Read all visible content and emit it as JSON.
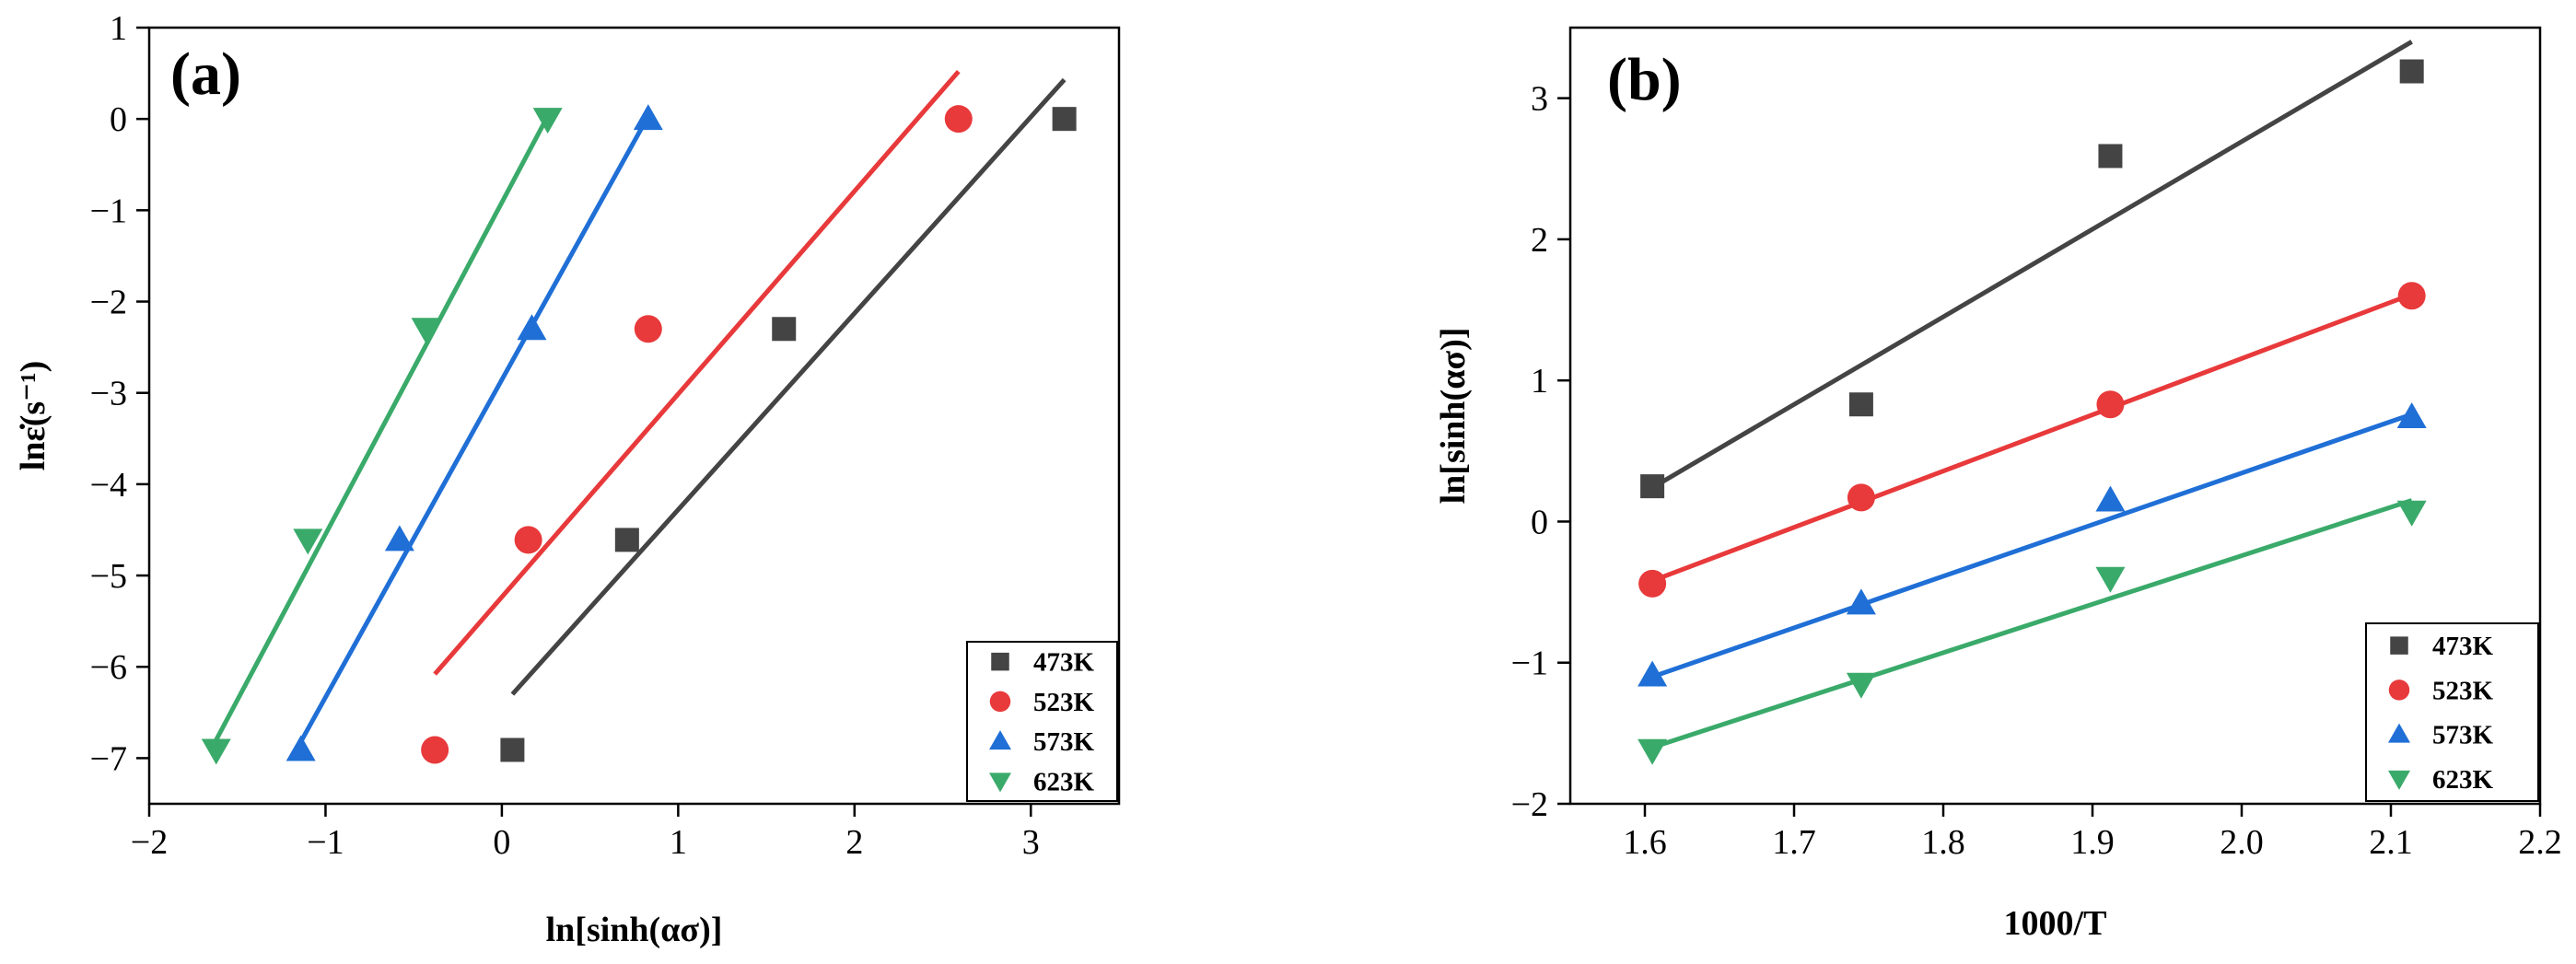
{
  "chart_data": [
    {
      "type": "scatter",
      "panel_label": "(a)",
      "xlabel": "ln[sinh(ασ)]",
      "ylabel": "lnε̇(s⁻¹)",
      "xlim": [
        -2,
        3.5
      ],
      "ylim": [
        -7.5,
        1
      ],
      "xticks": [
        -2,
        -1,
        0,
        1,
        2,
        3
      ],
      "xtick_labels": [
        "−2",
        "−1",
        "0",
        "1",
        "2",
        "3"
      ],
      "yticks": [
        1,
        0,
        -1,
        -2,
        -3,
        -4,
        -5,
        -6,
        -7
      ],
      "ytick_labels": [
        "1",
        "0",
        "−1",
        "−2",
        "−3",
        "−4",
        "−5",
        "−6",
        "−7"
      ],
      "legend_position": "bottom-right",
      "series": [
        {
          "name": "473K",
          "color": "#444444",
          "marker": "square",
          "x": [
            0.06,
            0.71,
            1.6,
            3.19
          ],
          "y": [
            -6.91,
            -4.61,
            -2.3,
            0.0
          ],
          "fit_x": [
            0.06,
            3.19
          ],
          "fit_y": [
            -6.3,
            0.43
          ]
        },
        {
          "name": "523K",
          "color": "#e8393b",
          "marker": "circle",
          "x": [
            -0.38,
            0.15,
            0.83,
            2.59
          ],
          "y": [
            -6.91,
            -4.61,
            -2.3,
            0.0
          ],
          "fit_x": [
            -0.38,
            2.59
          ],
          "fit_y": [
            -6.08,
            0.52
          ]
        },
        {
          "name": "573K",
          "color": "#1f6fd6",
          "marker": "triangle-up",
          "x": [
            -1.14,
            -0.58,
            0.17,
            0.83
          ],
          "y": [
            -6.91,
            -4.61,
            -2.3,
            0.0
          ],
          "fit_x": [
            -1.14,
            0.83
          ],
          "fit_y": [
            -6.82,
            0.03
          ]
        },
        {
          "name": "623K",
          "color": "#3aaa6a",
          "marker": "triangle-down",
          "x": [
            -1.62,
            -1.1,
            -0.43,
            0.26
          ],
          "y": [
            -6.91,
            -4.61,
            -2.3,
            0.0
          ],
          "fit_x": [
            -1.62,
            0.26
          ],
          "fit_y": [
            -6.8,
            0.03
          ]
        }
      ]
    },
    {
      "type": "scatter",
      "panel_label": "(b)",
      "xlabel": "1000/T",
      "ylabel": "ln[sinh(ασ)]",
      "xlim": [
        1.55,
        2.2
      ],
      "ylim": [
        -2,
        3.5
      ],
      "xticks": [
        1.6,
        1.7,
        1.8,
        1.9,
        2.0,
        2.1,
        2.2
      ],
      "xtick_labels": [
        "1.6",
        "1.7",
        "1.8",
        "1.9",
        "2.0",
        "2.1",
        "2.2"
      ],
      "yticks": [
        3,
        2,
        1,
        0,
        -1,
        -2
      ],
      "ytick_labels": [
        "3",
        "2",
        "1",
        "0",
        "−1",
        "−2"
      ],
      "legend_position": "bottom-right",
      "series": [
        {
          "name": "473K",
          "color": "#444444",
          "marker": "square",
          "x": [
            1.605,
            1.745,
            1.912,
            2.114
          ],
          "y": [
            0.25,
            0.83,
            2.59,
            3.19
          ],
          "fit_x": [
            1.605,
            2.114
          ],
          "fit_y": [
            0.24,
            3.4
          ]
        },
        {
          "name": "523K",
          "color": "#e8393b",
          "marker": "circle",
          "x": [
            1.605,
            1.745,
            1.912,
            2.114
          ],
          "y": [
            -0.44,
            0.17,
            0.83,
            1.6
          ],
          "fit_x": [
            1.605,
            2.114
          ],
          "fit_y": [
            -0.42,
            1.61
          ]
        },
        {
          "name": "573K",
          "color": "#1f6fd6",
          "marker": "triangle-up",
          "x": [
            1.605,
            1.745,
            1.912,
            2.114
          ],
          "y": [
            -1.09,
            -0.58,
            0.15,
            0.74
          ],
          "fit_x": [
            1.605,
            2.114
          ],
          "fit_y": [
            -1.1,
            0.76
          ]
        },
        {
          "name": "623K",
          "color": "#3aaa6a",
          "marker": "triangle-down",
          "x": [
            1.605,
            1.745,
            1.912,
            2.114
          ],
          "y": [
            -1.62,
            -1.15,
            -0.4,
            0.07
          ],
          "fit_x": [
            1.605,
            2.114
          ],
          "fit_y": [
            -1.6,
            0.15
          ]
        }
      ]
    }
  ]
}
